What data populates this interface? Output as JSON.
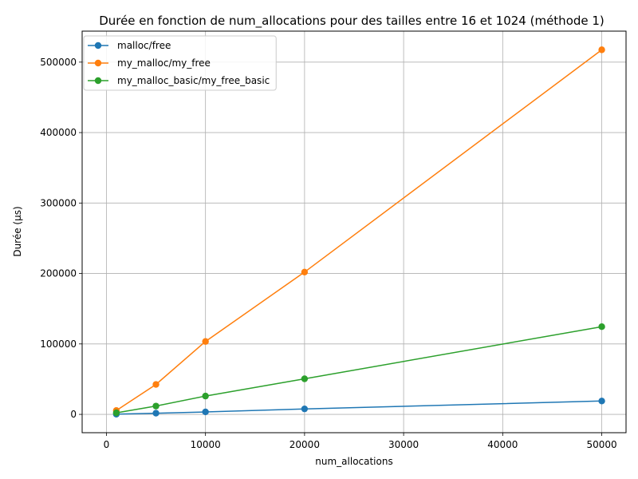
{
  "chart_data": {
    "type": "line",
    "title": "Durée en fonction de num_allocations pour des tailles entre 16 et 1024 (méthode 1)",
    "xlabel": "num_allocations",
    "ylabel": "Durée (µs)",
    "xlim": [
      -2450,
      52450
    ],
    "ylim": [
      -26000,
      544000
    ],
    "xticks": [
      0,
      10000,
      20000,
      30000,
      40000,
      50000
    ],
    "yticks": [
      0,
      100000,
      200000,
      300000,
      400000,
      500000
    ],
    "grid": true,
    "legend_position": "top-left",
    "x": [
      1000,
      5000,
      10000,
      20000,
      50000
    ],
    "series": [
      {
        "name": "malloc/free",
        "color": "#1f77b4",
        "values": [
          300,
          1700,
          3500,
          7800,
          19000
        ]
      },
      {
        "name": "my_malloc/my_free",
        "color": "#ff7f0e",
        "values": [
          5500,
          42500,
          103500,
          202000,
          517500
        ]
      },
      {
        "name": "my_malloc_basic/my_free_basic",
        "color": "#2ca02c",
        "values": [
          2200,
          11800,
          26000,
          50500,
          124500
        ]
      }
    ]
  }
}
